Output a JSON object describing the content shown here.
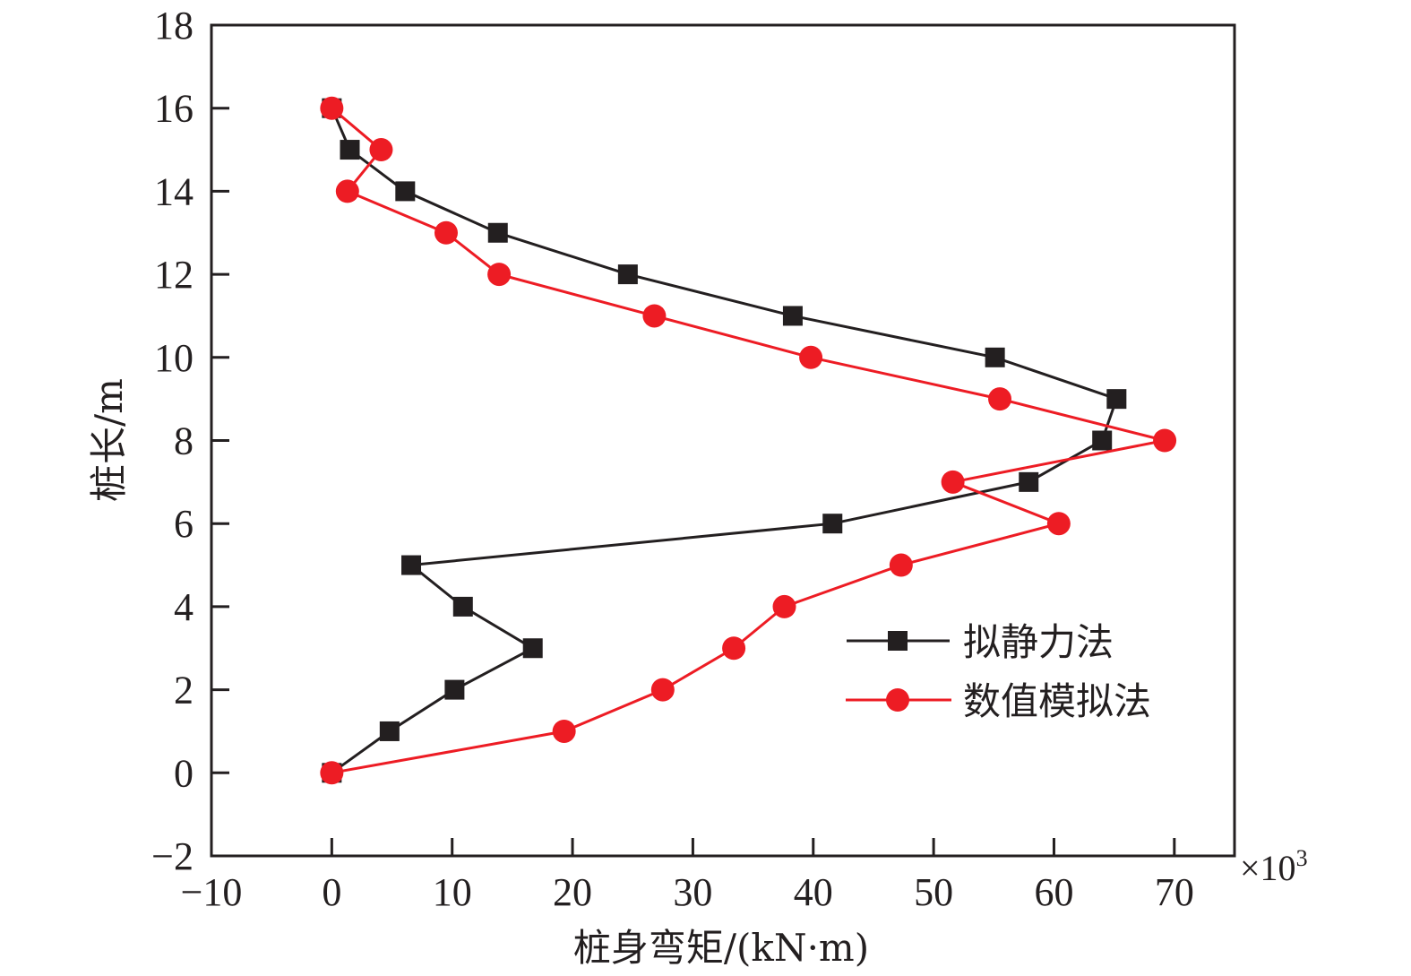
{
  "chart_data": {
    "type": "line",
    "title": "",
    "xlabel": "桩身弯矩/(kN·m)",
    "ylabel": "桩长/m",
    "x_multiplier": "×10",
    "x_multiplier_exp": "3",
    "xlim": [
      -10,
      75
    ],
    "ylim": [
      -2,
      18
    ],
    "xticks": [
      -10,
      0,
      10,
      20,
      30,
      40,
      50,
      60,
      70
    ],
    "xtick_labels": [
      "−10",
      "0",
      "10",
      "20",
      "30",
      "40",
      "50",
      "60",
      "70"
    ],
    "yticks": [
      -2,
      0,
      2,
      4,
      6,
      8,
      10,
      12,
      14,
      16,
      18
    ],
    "ytick_labels": [
      "−2",
      "0",
      "2",
      "4",
      "6",
      "8",
      "10",
      "12",
      "14",
      "16",
      "18"
    ],
    "grid": false,
    "legend_position": "lower-right",
    "series": [
      {
        "name": "拟静力法",
        "color": "#231f20",
        "marker": "square",
        "x": [
          0,
          4.8,
          10.2,
          16.7,
          10.9,
          6.6,
          41.6,
          57.9,
          64.0,
          65.2,
          55.1,
          38.3,
          24.6,
          13.8,
          6.1,
          1.5,
          0
        ],
        "y": [
          0,
          1,
          2,
          3,
          4,
          5,
          6,
          7,
          8,
          9,
          10,
          11,
          12,
          13,
          14,
          15,
          16
        ]
      },
      {
        "name": "数值模拟法",
        "color": "#ed1c24",
        "marker": "circle",
        "x": [
          0,
          19.3,
          27.5,
          33.4,
          37.6,
          47.3,
          60.4,
          51.6,
          69.2,
          55.5,
          39.8,
          26.8,
          13.9,
          9.5,
          1.3,
          4.1,
          0
        ],
        "y": [
          0,
          1,
          2,
          3,
          4,
          5,
          6,
          7,
          8,
          9,
          10,
          11,
          12,
          13,
          14,
          15,
          16
        ]
      }
    ]
  }
}
